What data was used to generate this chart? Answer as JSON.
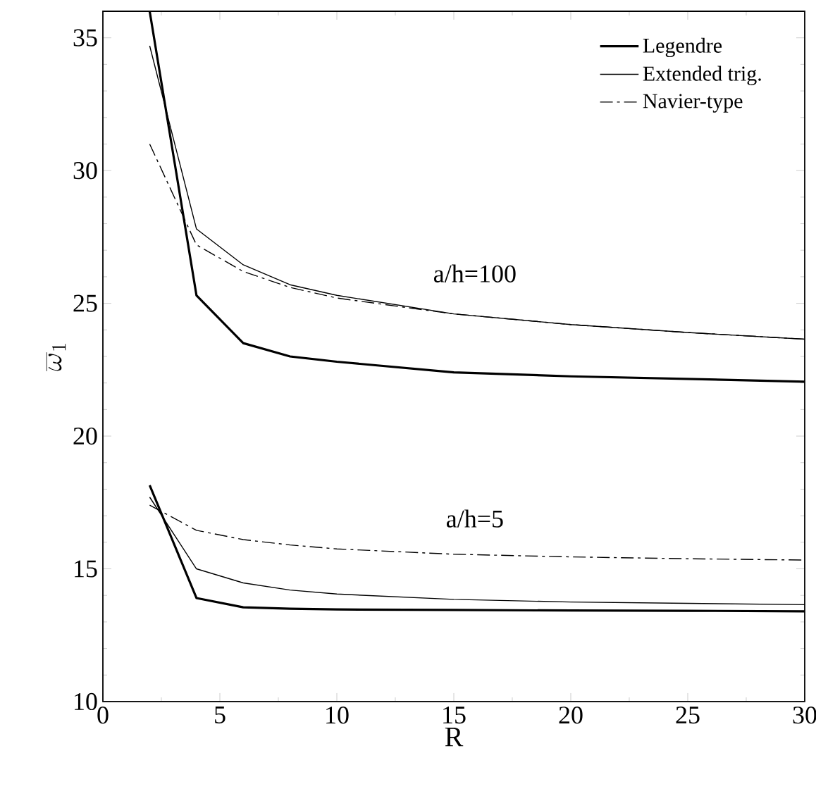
{
  "chart_data": {
    "type": "line",
    "xlabel": "R",
    "ylabel": "\\overline{\\omega}_1",
    "xlim": [
      0,
      30
    ],
    "ylim": [
      10,
      36
    ],
    "xticks": [
      0,
      5,
      10,
      15,
      20,
      25,
      30
    ],
    "yticks": [
      10,
      15,
      20,
      25,
      30,
      35
    ],
    "x": [
      2,
      4,
      6,
      8,
      10,
      15,
      20,
      25,
      30
    ],
    "legend": "top right",
    "marker": "none",
    "grid": false,
    "series": [
      {
        "name": "Legendre",
        "color": "#000000",
        "line_style": "solid",
        "values": [
          36,
          25.3,
          23.5,
          23.0,
          22.8,
          22.4,
          22.25,
          22.15,
          22.05
        ]
      },
      {
        "name": "Extended trig.",
        "color": "#000000",
        "line_style": "solid",
        "values": [
          34.7,
          27.8,
          26.45,
          25.7,
          25.3,
          24.6,
          24.2,
          23.9,
          23.65
        ]
      },
      {
        "name": "Navier-type",
        "color": "#000000",
        "line_style": "dashdot",
        "values": [
          31.0,
          27.2,
          26.2,
          25.6,
          25.2,
          24.6,
          24.2,
          23.9,
          23.65
        ]
      },
      {
        "color": "#000000",
        "line_style": "solid",
        "values": [
          18.15,
          13.9,
          13.55,
          13.5,
          13.47,
          13.45,
          13.43,
          13.42,
          13.4
        ]
      },
      {
        "color": "#000000",
        "line_style": "solid",
        "values": [
          17.7,
          15.0,
          14.47,
          14.2,
          14.05,
          13.85,
          13.75,
          13.7,
          13.65
        ]
      },
      {
        "color": "#000000",
        "line_style": "dashdot",
        "values": [
          17.4,
          16.45,
          16.1,
          15.9,
          15.75,
          15.55,
          15.45,
          15.38,
          15.33
        ]
      }
    ],
    "annotations": [
      "a/h=100",
      "a/h=5"
    ]
  }
}
